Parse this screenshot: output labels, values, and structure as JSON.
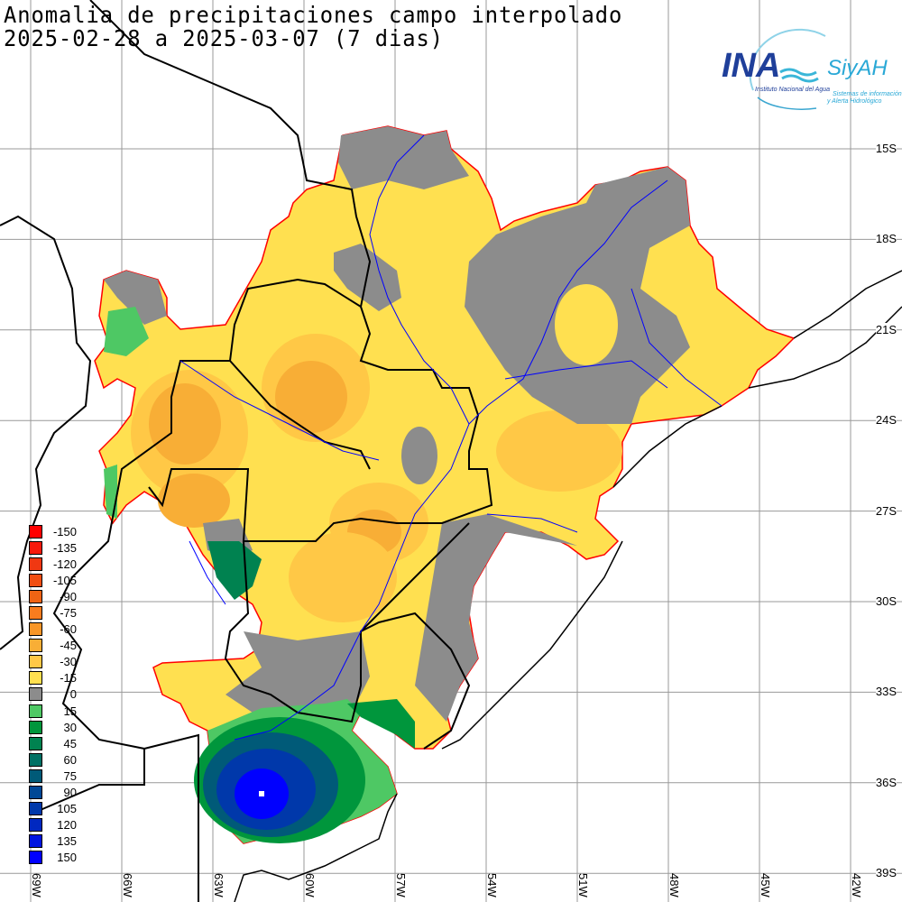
{
  "title": {
    "line1": "Anomalia de precipitaciones campo interpolado",
    "line2": "2025-02-28 a 2025-03-07 (7 dias)"
  },
  "logo": {
    "ina": "INA",
    "siyah": "SiyAH",
    "sub1": "Instituto Nacional del Agua",
    "sub2": "Sistemas de información",
    "sub3": "y Alerta Hidrológico"
  },
  "latitudes": [
    "15S",
    "18S",
    "21S",
    "24S",
    "27S",
    "30S",
    "33S",
    "36S",
    "39S"
  ],
  "longitudes": [
    "69W",
    "66W",
    "63W",
    "60W",
    "57W",
    "54W",
    "51W",
    "48W",
    "45W",
    "42W"
  ],
  "legend": [
    {
      "label": "-150",
      "color": "#ff0000"
    },
    {
      "label": "-135",
      "color": "#f81a0c"
    },
    {
      "label": "-120",
      "color": "#f03812"
    },
    {
      "label": "-105",
      "color": "#f04e12"
    },
    {
      "label": "-90",
      "color": "#f06414"
    },
    {
      "label": "-75",
      "color": "#f87c1e"
    },
    {
      "label": "-60",
      "color": "#f89628"
    },
    {
      "label": "-45",
      "color": "#f8ae36"
    },
    {
      "label": "-30",
      "color": "#ffc846"
    },
    {
      "label": "-15",
      "color": "#ffe050"
    },
    {
      "label": "0",
      "color": "#8c8c8c"
    },
    {
      "label": "15",
      "color": "#4ec864"
    },
    {
      "label": "30",
      "color": "#00963c"
    },
    {
      "label": "45",
      "color": "#008250"
    },
    {
      "label": "60",
      "color": "#007064"
    },
    {
      "label": "75",
      "color": "#005a78"
    },
    {
      "label": "90",
      "color": "#004896"
    },
    {
      "label": "105",
      "color": "#0038aa"
    },
    {
      "label": "120",
      "color": "#0028c0"
    },
    {
      "label": "135",
      "color": "#0014e0"
    },
    {
      "label": "150",
      "color": "#0000ff"
    }
  ]
}
